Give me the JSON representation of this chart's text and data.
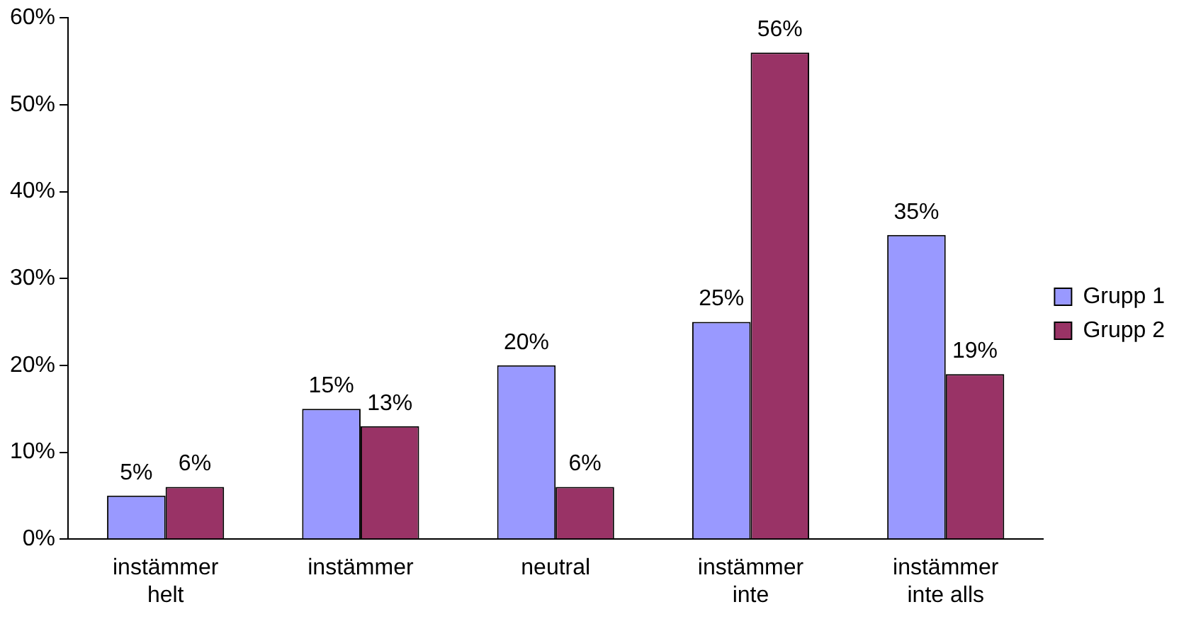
{
  "chart_data": {
    "type": "bar",
    "categories": [
      "instämmer helt",
      "instämmer",
      "neutral",
      "instämmer inte",
      "instämmer inte alls"
    ],
    "series": [
      {
        "name": "Grupp 1",
        "color": "#9999ff",
        "values": [
          5,
          15,
          20,
          25,
          35
        ],
        "value_labels": [
          "5%",
          "15%",
          "20%",
          "25%",
          "35%"
        ]
      },
      {
        "name": "Grupp 2",
        "color": "#993366",
        "values": [
          6,
          13,
          6,
          56,
          19
        ],
        "value_labels": [
          "6%",
          "13%",
          "6%",
          "56%",
          "19%"
        ]
      }
    ],
    "ylim": [
      0,
      60
    ],
    "yticks": [
      {
        "value": 0,
        "label": "0%"
      },
      {
        "value": 10,
        "label": "10%"
      },
      {
        "value": 20,
        "label": "20%"
      },
      {
        "value": 30,
        "label": "30%"
      },
      {
        "value": 40,
        "label": "40%"
      },
      {
        "value": 50,
        "label": "50%"
      },
      {
        "value": 60,
        "label": "60%"
      }
    ],
    "grid": false,
    "legend": "right"
  }
}
